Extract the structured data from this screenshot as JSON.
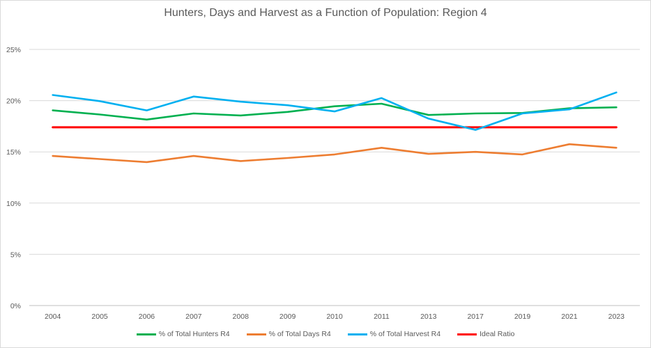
{
  "chart_data": {
    "type": "line",
    "title": "Hunters, Days and Harvest as a Function of Population: Region 4",
    "xlabel": "",
    "ylabel": "",
    "categories": [
      "2004",
      "2005",
      "2006",
      "2007",
      "2008",
      "2009",
      "2010",
      "2011",
      "2013",
      "2017",
      "2019",
      "2021",
      "2023"
    ],
    "ylim": [
      0,
      0.25
    ],
    "yticks": [
      0,
      0.05,
      0.1,
      0.15,
      0.2,
      0.25
    ],
    "ytick_labels": [
      "0%",
      "5%",
      "10%",
      "15%",
      "20%",
      "25%"
    ],
    "grid": true,
    "legend_position": "bottom",
    "series": [
      {
        "name": "% of Total Hunters R4",
        "color": "#00b050",
        "values": [
          0.1905,
          0.1865,
          0.1815,
          0.1875,
          0.1855,
          0.189,
          0.1945,
          0.197,
          0.186,
          0.1875,
          0.188,
          0.1925,
          0.1935
        ]
      },
      {
        "name": "% of Total Days R4",
        "color": "#ed7d31",
        "values": [
          0.146,
          0.143,
          0.14,
          0.146,
          0.141,
          0.144,
          0.1475,
          0.154,
          0.148,
          0.15,
          0.1475,
          0.1575,
          0.154
        ]
      },
      {
        "name": "% of Total Harvest R4",
        "color": "#00b0f0",
        "values": [
          0.2055,
          0.1995,
          0.1905,
          0.204,
          0.199,
          0.1955,
          0.1895,
          0.2025,
          0.1825,
          0.1715,
          0.1875,
          0.1915,
          0.208
        ]
      },
      {
        "name": "Ideal Ratio",
        "color": "#ff0000",
        "values": [
          0.174,
          0.174,
          0.174,
          0.174,
          0.174,
          0.174,
          0.174,
          0.174,
          0.174,
          0.174,
          0.174,
          0.174,
          0.174
        ]
      }
    ]
  }
}
